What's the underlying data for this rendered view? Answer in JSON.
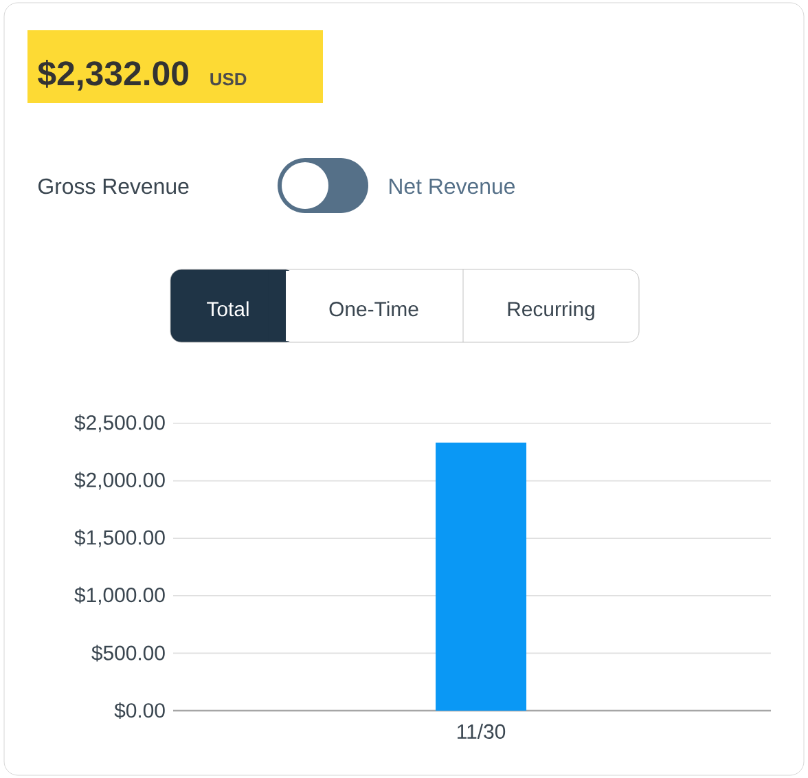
{
  "chart_data": {
    "type": "bar",
    "title": "$2,332.00",
    "subtitle": "USD",
    "annotations": [
      "Gross Revenue",
      "Net Revenue",
      "Total",
      "One-Time",
      "Recurring"
    ],
    "categories": [
      "11/30"
    ],
    "values": [
      2332
    ],
    "color": "#0a98f5",
    "ylim": [
      0,
      2500
    ],
    "yticks": [
      {
        "value": 0,
        "label": "$0.00"
      },
      {
        "value": 500,
        "label": "$500.00"
      },
      {
        "value": 1000,
        "label": "$1,000.00"
      },
      {
        "value": 1500,
        "label": "$1,500.00"
      },
      {
        "value": 2000,
        "label": "$2,000.00"
      },
      {
        "value": 2500,
        "label": "$2,500.00"
      }
    ],
    "grid": "y"
  }
}
